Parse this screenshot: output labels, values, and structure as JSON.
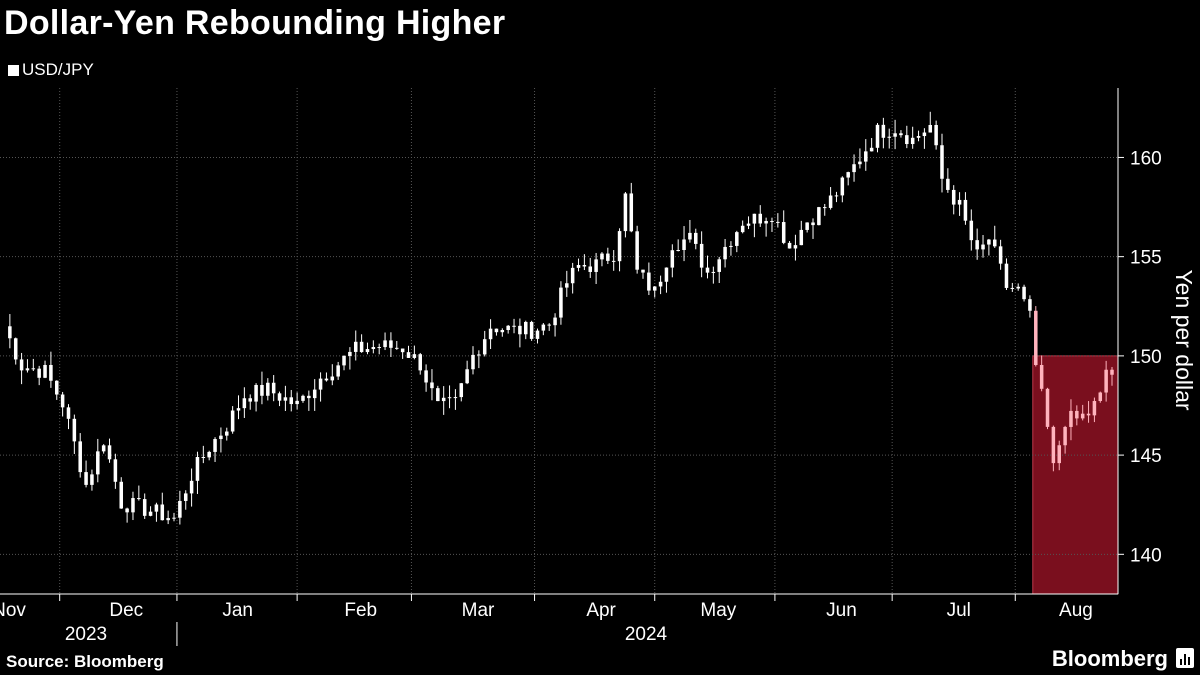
{
  "chart_data": {
    "type": "candlestick",
    "title": "Dollar-Yen Rebounding Higher",
    "legend": [
      "USD/JPY"
    ],
    "ylabel": "Yen per dollar",
    "ylim": [
      138,
      163.5
    ],
    "yticks": [
      140,
      145,
      150,
      155,
      160
    ],
    "x_months": [
      {
        "label": "Nov",
        "index": 0
      },
      {
        "label": "Dec",
        "index": 20
      },
      {
        "label": "Jan",
        "index": 39
      },
      {
        "label": "Feb",
        "index": 60
      },
      {
        "label": "Mar",
        "index": 80
      },
      {
        "label": "Apr",
        "index": 101
      },
      {
        "label": "May",
        "index": 121
      },
      {
        "label": "Jun",
        "index": 142
      },
      {
        "label": "Jul",
        "index": 162
      },
      {
        "label": "Aug",
        "index": 182
      }
    ],
    "x_years": [
      {
        "label": "2023",
        "index": 10
      },
      {
        "label": "2024",
        "index": 110
      }
    ],
    "year_divider_index": 29.5,
    "month_boundaries": [
      9.5,
      29.5,
      50,
      69.5,
      90.5,
      111,
      131.5,
      151.5,
      172.5
    ],
    "n_points": 190,
    "highlight": {
      "x_start_index": 176,
      "x_end_index": 190,
      "y_from": 138,
      "y_to": 150,
      "color": "#7a0f1e"
    },
    "close_anchors": [
      [
        0,
        151.5
      ],
      [
        3,
        149.5
      ],
      [
        7,
        149.2
      ],
      [
        10,
        147.6
      ],
      [
        14,
        143.5
      ],
      [
        17,
        145.8
      ],
      [
        20,
        142.6
      ],
      [
        25,
        142.2
      ],
      [
        29,
        141.8
      ],
      [
        32,
        144.0
      ],
      [
        35,
        145.4
      ],
      [
        38,
        146.5
      ],
      [
        41,
        148.0
      ],
      [
        45,
        148.3
      ],
      [
        50,
        147.5
      ],
      [
        54,
        148.9
      ],
      [
        57,
        149.6
      ],
      [
        60,
        150.3
      ],
      [
        64,
        150.5
      ],
      [
        68,
        150.4
      ],
      [
        71,
        149.6
      ],
      [
        74,
        147.4
      ],
      [
        77,
        147.6
      ],
      [
        80,
        150.0
      ],
      [
        83,
        151.5
      ],
      [
        87,
        151.3
      ],
      [
        90,
        151.3
      ],
      [
        93,
        151.6
      ],
      [
        96,
        153.7
      ],
      [
        98,
        154.5
      ],
      [
        101,
        154.6
      ],
      [
        104,
        155.2
      ],
      [
        106,
        158.0
      ],
      [
        108,
        154.2
      ],
      [
        111,
        153.2
      ],
      [
        114,
        155.7
      ],
      [
        117,
        155.9
      ],
      [
        120,
        154.2
      ],
      [
        123,
        155.5
      ],
      [
        126,
        156.8
      ],
      [
        128,
        156.9
      ],
      [
        131,
        157.2
      ],
      [
        134,
        155.5
      ],
      [
        137,
        156.8
      ],
      [
        140,
        157.5
      ],
      [
        143,
        158.6
      ],
      [
        146,
        160.0
      ],
      [
        149,
        161.3
      ],
      [
        152,
        161.5
      ],
      [
        155,
        160.9
      ],
      [
        158,
        161.6
      ],
      [
        160,
        158.9
      ],
      [
        163,
        157.5
      ],
      [
        166,
        155.0
      ],
      [
        168,
        155.9
      ],
      [
        171,
        153.5
      ],
      [
        173,
        153.3
      ],
      [
        175,
        151.9
      ],
      [
        176,
        149.5
      ],
      [
        178,
        146.3
      ],
      [
        179,
        144.3
      ],
      [
        181,
        146.8
      ],
      [
        183,
        146.8
      ],
      [
        185,
        147.1
      ],
      [
        187,
        147.9
      ],
      [
        188,
        149.3
      ],
      [
        189,
        149.1
      ]
    ]
  },
  "source_label": "Source: Bloomberg",
  "brand": "Bloomberg",
  "colors": {
    "background": "#000000",
    "candle": "#ffffff",
    "highlight_fill": "#7a0f1e",
    "highlight_candle": "#ffb3bd",
    "grid": "#555555"
  }
}
